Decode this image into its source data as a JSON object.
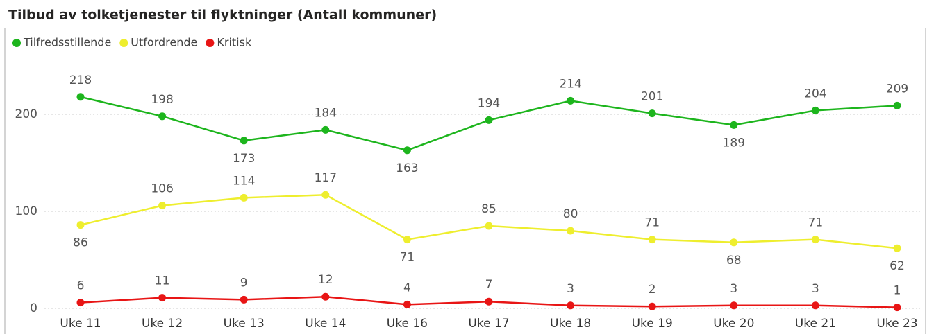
{
  "chart_data": {
    "type": "line",
    "title": "Tilbud av tolketjenester til flyktninger (Antall kommuner)",
    "categories": [
      "Uke 11",
      "Uke 12",
      "Uke 13",
      "Uke 14",
      "Uke 16",
      "Uke 17",
      "Uke 18",
      "Uke 19",
      "Uke 20",
      "Uke 21",
      "Uke 23"
    ],
    "series": [
      {
        "name": "Tilfredsstillende",
        "color": "#1db51d",
        "values": [
          218,
          198,
          173,
          184,
          163,
          194,
          214,
          201,
          189,
          204,
          209
        ]
      },
      {
        "name": "Utfordrende",
        "color": "#eeee2e",
        "values": [
          86,
          106,
          114,
          117,
          71,
          85,
          80,
          71,
          68,
          71,
          62
        ]
      },
      {
        "name": "Kritisk",
        "color": "#e81515",
        "values": [
          6,
          11,
          9,
          12,
          4,
          7,
          3,
          2,
          3,
          3,
          1
        ]
      }
    ],
    "ylim": [
      0,
      250
    ],
    "yticks": [
      0,
      100,
      200
    ],
    "grid": true,
    "legend": "top-left"
  }
}
